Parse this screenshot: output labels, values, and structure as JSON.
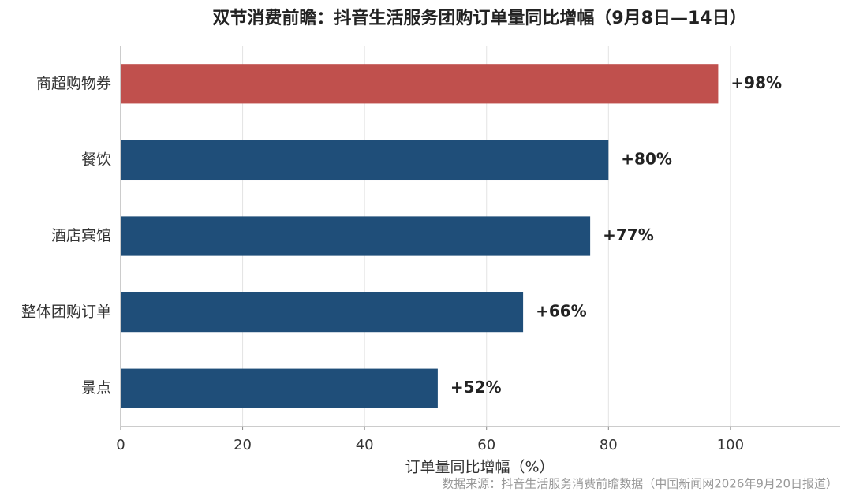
{
  "chart_data": {
    "type": "bar",
    "orientation": "horizontal",
    "title": "双节消费前瞻：抖音生活服务团购订单量同比增幅（9月8日—14日）",
    "categories": [
      "商超购物券",
      "餐饮",
      "酒店宾馆",
      "整体团购订单",
      "景点"
    ],
    "values": [
      98,
      80,
      77,
      66,
      52
    ],
    "value_labels": [
      "+98%",
      "+80%",
      "+77%",
      "+66%",
      "+52%"
    ],
    "colors": [
      "#c0504d",
      "#1f4e79",
      "#1f4e79",
      "#1f4e79",
      "#1f4e79"
    ],
    "xlim": [
      0,
      118
    ],
    "xticks": [
      0,
      20,
      40,
      60,
      80,
      100
    ],
    "grid": true,
    "x_label": "订单量同比增幅（%）",
    "source": "数据来源：抖音生活服务消费前瞻数据（中国新闻网2026年9月20日报道）"
  }
}
